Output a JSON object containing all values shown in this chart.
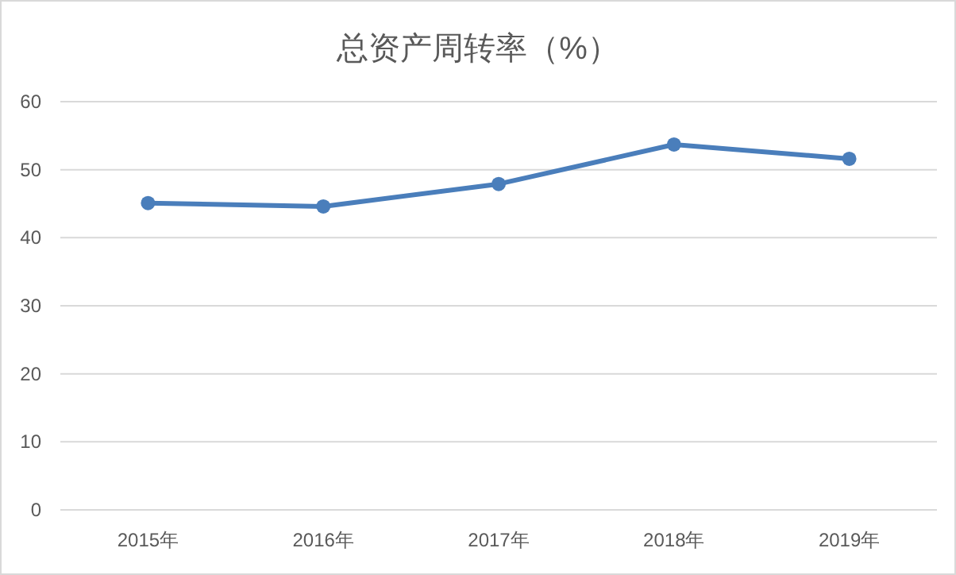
{
  "chart_data": {
    "type": "line",
    "title": "总资产周转率（%）",
    "categories": [
      "2015年",
      "2016年",
      "2017年",
      "2018年",
      "2019年"
    ],
    "series": [
      {
        "color": "#4a7ebb",
        "values": [
          45.1,
          44.6,
          47.9,
          53.7,
          51.6
        ]
      }
    ],
    "ylim": [
      0,
      60
    ],
    "yticks": [
      0,
      10,
      20,
      30,
      40,
      50,
      60
    ],
    "grid": "y",
    "marker": "circle",
    "line_style": "solid"
  }
}
